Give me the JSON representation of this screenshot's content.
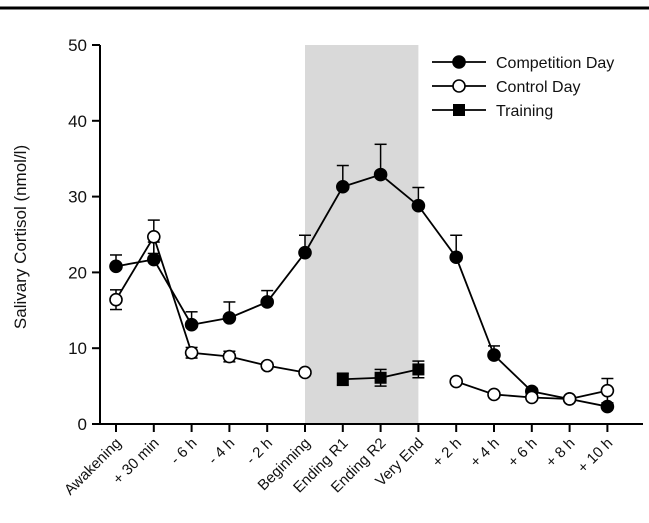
{
  "chart_data": {
    "type": "line",
    "title": "",
    "xlabel": "",
    "ylabel": "Salivary Cortisol (nmol/l)",
    "ylim": [
      0,
      50
    ],
    "yticks": [
      0,
      10,
      20,
      30,
      40,
      50
    ],
    "categories": [
      "Awakening",
      "+ 30 min",
      "- 6 h",
      "- 4 h",
      "- 2 h",
      "Beginning",
      "Ending R1",
      "Ending R2",
      "Very End",
      "+ 2 h",
      "+ 4 h",
      "+ 6 h",
      "+ 8 h",
      "+ 10 h"
    ],
    "shaded_region": {
      "from": "Beginning",
      "to": "Very End",
      "color": "#d9d9d9"
    },
    "legend_position": "top-right",
    "grid": false,
    "series": [
      {
        "name": "Competition Day",
        "marker": "filled-circle",
        "connected": true,
        "values": [
          20.8,
          21.7,
          13.1,
          14.0,
          16.1,
          22.6,
          31.3,
          32.9,
          28.8,
          22.0,
          9.1,
          4.3,
          3.3,
          2.3
        ],
        "errors": [
          1.5,
          2.3,
          1.7,
          2.1,
          1.5,
          2.3,
          2.8,
          4.0,
          2.4,
          2.9,
          1.2,
          0.4,
          0.3,
          0.3
        ],
        "error_side": "up"
      },
      {
        "name": "Control Day",
        "marker": "open-circle",
        "connected_groups": [
          [
            0,
            5
          ],
          [
            9,
            13
          ]
        ],
        "values": [
          16.4,
          24.7,
          9.4,
          8.9,
          7.7,
          6.8,
          null,
          null,
          null,
          5.6,
          3.9,
          3.5,
          3.3,
          4.4
        ],
        "errors": [
          1.3,
          2.2,
          0.7,
          0.7,
          0.4,
          0.3,
          null,
          null,
          null,
          0.3,
          0.3,
          0.3,
          0.3,
          1.6
        ],
        "error_side": "both"
      },
      {
        "name": "Training",
        "marker": "filled-square",
        "connected": true,
        "values": [
          null,
          null,
          null,
          null,
          null,
          null,
          5.9,
          6.1,
          7.2,
          null,
          null,
          null,
          null,
          null
        ],
        "errors": [
          null,
          null,
          null,
          null,
          null,
          null,
          0.8,
          1.1,
          1.1,
          null,
          null,
          null,
          null,
          null
        ],
        "error_side": "both"
      }
    ]
  }
}
